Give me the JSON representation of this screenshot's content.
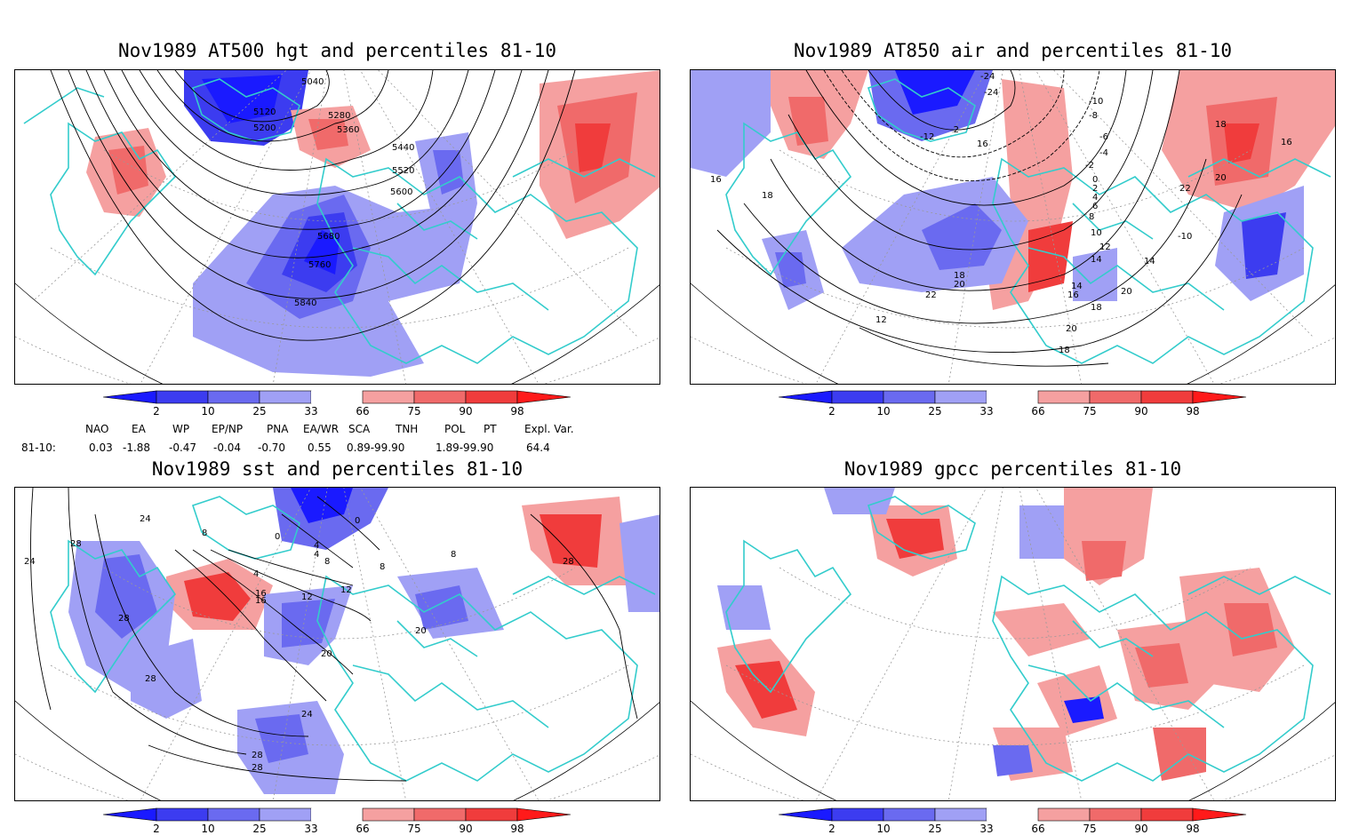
{
  "panels": {
    "tl": {
      "title": "Nov1989 AT500 hgt and percentiles 81-10",
      "contour_labels": [
        "5040",
        "5120",
        "5200",
        "5280",
        "5360",
        "5440",
        "5520",
        "5600",
        "5680",
        "5760",
        "5840"
      ]
    },
    "tr": {
      "title": "Nov1989 AT850 air and percentiles 81-10",
      "contour_labels": [
        "-24",
        "-24",
        "-10",
        "-8",
        "-6",
        "-4",
        "-2",
        "0",
        "2",
        "4",
        "6",
        "8",
        "10",
        "12",
        "14",
        "16",
        "18",
        "20",
        "22",
        "-10",
        "-12",
        "-2",
        "16",
        "16",
        "18",
        "18",
        "20",
        "22",
        "12",
        "14",
        "16",
        "18",
        "20",
        "18",
        "20",
        "14"
      ]
    },
    "bl": {
      "title": "Nov1989 sst and percentiles 81-10",
      "contour_labels": [
        "24",
        "28",
        "24",
        "8",
        "0",
        "4",
        "4",
        "8",
        "12",
        "16",
        "20",
        "28",
        "28",
        "24",
        "28",
        "28",
        "20",
        "28",
        "8",
        "4",
        "0",
        "16",
        "12",
        "8"
      ]
    },
    "br": {
      "title": "Nov1989 gpcc percentiles 81-10",
      "contour_labels": []
    }
  },
  "colorbar": {
    "ticks": [
      "2",
      "10",
      "25",
      "33",
      "66",
      "75",
      "90",
      "98"
    ],
    "colors": [
      "#1a1aff",
      "#3c3cf0",
      "#6a6af0",
      "#a0a0f5",
      "#ffffff",
      "#f5a0a0",
      "#f06a6a",
      "#f03c3c",
      "#ff1a1a"
    ]
  },
  "indices": {
    "headers": [
      "NAO",
      "EA",
      "WP",
      "EP/NP",
      "PNA",
      "EA/WR",
      "SCA",
      "TNH",
      "POL",
      "PT",
      "Expl. Var."
    ],
    "row_label": "81-10:",
    "values": [
      "0.03",
      "-1.88",
      "-0.47",
      "-0.04",
      "-0.70",
      "0.55",
      "0.89-99.90",
      "1.89-99.90",
      "64.4"
    ]
  },
  "colors": {
    "coast": "#33cccc",
    "contour": "#000000",
    "grid": "#999999",
    "frame": "#000000"
  }
}
